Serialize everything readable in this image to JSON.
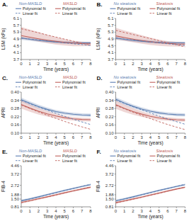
{
  "chart_data": [
    {
      "type": "line",
      "title": "A.",
      "xlabel": "Time (years)",
      "ylabel": "LSM (kPa)",
      "x": [
        0,
        1,
        2,
        3,
        4,
        5,
        6,
        7,
        8
      ],
      "xlim": [
        0,
        8
      ],
      "xticks": [
        0,
        1,
        2,
        3,
        4,
        5,
        6,
        7,
        8
      ],
      "ylim": [
        3.7,
        6.1
      ],
      "yticks": [
        3.7,
        4.1,
        4.5,
        4.9,
        5.3,
        5.7,
        6.1
      ],
      "series": [
        {
          "name": "Polynomial fit",
          "group": "Non-MASLD",
          "color": "#5b7db1",
          "line_style": "solid",
          "values": [
            4.95,
            4.88,
            4.82,
            4.77,
            4.73,
            4.7,
            4.68,
            4.67,
            4.67
          ],
          "ci_upper": [
            5.05,
            4.97,
            4.91,
            4.86,
            4.82,
            4.78,
            4.76,
            4.75,
            4.75
          ],
          "ci_lower": [
            4.85,
            4.79,
            4.73,
            4.68,
            4.64,
            4.62,
            4.6,
            4.59,
            4.59
          ]
        },
        {
          "name": "Polynomial fit",
          "group": "MASLD",
          "color": "#c0615b",
          "line_style": "solid",
          "values": [
            5.1,
            5.0,
            4.91,
            4.83,
            4.76,
            4.7,
            4.66,
            4.63,
            4.62
          ],
          "ci_upper": [
            5.6,
            5.45,
            5.3,
            5.15,
            5.01,
            4.89,
            4.8,
            4.74,
            4.71
          ],
          "ci_lower": [
            4.9,
            4.85,
            4.75,
            4.65,
            4.57,
            4.52,
            4.48,
            4.48,
            4.49
          ]
        },
        {
          "name": "Linear fit",
          "group": "Non-MASLD",
          "color": "#5b7db1",
          "line_style": "dashed",
          "values": [
            4.95,
            4.89,
            4.84,
            4.78,
            4.73,
            4.67,
            4.62,
            4.57,
            4.52
          ]
        },
        {
          "name": "Linear fit",
          "group": "MASLD",
          "color": "#c0615b",
          "line_style": "dashed",
          "values": [
            5.5,
            5.38,
            5.26,
            5.13,
            5.01,
            4.89,
            4.77,
            4.65,
            4.53
          ]
        }
      ]
    },
    {
      "type": "line",
      "title": "B.",
      "xlabel": "Time (years)",
      "ylabel": "LSM (kPa)",
      "x": [
        0,
        1,
        2,
        3,
        4,
        5,
        6,
        7,
        8
      ],
      "xlim": [
        0,
        8
      ],
      "xticks": [
        0,
        1,
        2,
        3,
        4,
        5,
        6,
        7,
        8
      ],
      "ylim": [
        3.7,
        6.1
      ],
      "yticks": [
        3.7,
        4.1,
        4.5,
        4.9,
        5.3,
        5.7,
        6.1
      ],
      "series": [
        {
          "name": "Polynomial fit",
          "group": "No steatosis",
          "color": "#5b7db1",
          "line_style": "solid",
          "values": [
            4.95,
            4.88,
            4.82,
            4.77,
            4.73,
            4.7,
            4.68,
            4.67,
            4.67
          ],
          "ci_upper": [
            5.05,
            4.97,
            4.91,
            4.86,
            4.82,
            4.78,
            4.76,
            4.75,
            4.75
          ],
          "ci_lower": [
            4.85,
            4.79,
            4.73,
            4.68,
            4.64,
            4.62,
            4.6,
            4.59,
            4.59
          ]
        },
        {
          "name": "Polynomial fit",
          "group": "Steatosis",
          "color": "#c0615b",
          "line_style": "solid",
          "values": [
            5.08,
            4.98,
            4.89,
            4.81,
            4.74,
            4.68,
            4.64,
            4.61,
            4.6
          ],
          "ci_upper": [
            5.55,
            5.4,
            5.26,
            5.12,
            4.98,
            4.86,
            4.78,
            4.73,
            4.7
          ],
          "ci_lower": [
            4.88,
            4.8,
            4.7,
            4.62,
            4.55,
            4.5,
            4.47,
            4.46,
            4.47
          ]
        },
        {
          "name": "Linear fit",
          "group": "No steatosis",
          "color": "#5b7db1",
          "line_style": "dashed",
          "values": [
            4.95,
            4.89,
            4.84,
            4.78,
            4.73,
            4.67,
            4.62,
            4.57,
            4.52
          ]
        },
        {
          "name": "Linear fit",
          "group": "Steatosis",
          "color": "#c0615b",
          "line_style": "dashed",
          "values": [
            5.4,
            5.28,
            5.16,
            5.04,
            4.92,
            4.8,
            4.68,
            4.56,
            4.44
          ]
        }
      ]
    },
    {
      "type": "line",
      "title": "C.",
      "xlabel": "Time (years)",
      "ylabel": "APRI",
      "x": [
        0,
        1,
        2,
        3,
        4,
        5,
        6,
        7,
        8
      ],
      "xlim": [
        0,
        8
      ],
      "xticks": [
        0,
        1,
        2,
        3,
        4,
        5,
        6,
        7,
        8
      ],
      "ylim": [
        0.1,
        0.4
      ],
      "yticks": [
        {
          "value": 0.1,
          "label": "0.10"
        },
        0.16,
        0.22,
        0.28,
        0.34,
        {
          "value": 0.4,
          "label": "0.40"
        }
      ],
      "series": [
        {
          "name": "Polynomial fit",
          "group": "Non-MASLD",
          "color": "#5b7db1",
          "line_style": "solid",
          "values": [
            0.345,
            0.318,
            0.294,
            0.274,
            0.258,
            0.246,
            0.238,
            0.233,
            0.231
          ],
          "ci_upper": [
            0.36,
            0.333,
            0.308,
            0.287,
            0.27,
            0.258,
            0.25,
            0.245,
            0.243
          ],
          "ci_lower": [
            0.33,
            0.303,
            0.28,
            0.261,
            0.246,
            0.234,
            0.226,
            0.221,
            0.219
          ]
        },
        {
          "name": "Polynomial fit",
          "group": "MASLD",
          "color": "#c0615b",
          "line_style": "solid",
          "values": [
            0.31,
            0.283,
            0.26,
            0.241,
            0.225,
            0.213,
            0.205,
            0.2,
            0.198
          ],
          "ci_upper": [
            0.34,
            0.31,
            0.284,
            0.261,
            0.242,
            0.228,
            0.218,
            0.213,
            0.211
          ],
          "ci_lower": [
            0.28,
            0.256,
            0.236,
            0.221,
            0.208,
            0.198,
            0.192,
            0.187,
            0.185
          ]
        },
        {
          "name": "Linear fit",
          "group": "Non-MASLD",
          "color": "#5b7db1",
          "line_style": "dashed",
          "values": [
            0.34,
            0.315,
            0.291,
            0.268,
            0.245,
            0.223,
            0.202,
            0.182,
            0.163
          ]
        },
        {
          "name": "Linear fit",
          "group": "MASLD",
          "color": "#c0615b",
          "line_style": "dashed",
          "values": [
            0.305,
            0.28,
            0.255,
            0.231,
            0.208,
            0.186,
            0.165,
            0.146,
            0.128
          ]
        }
      ]
    },
    {
      "type": "line",
      "title": "D.",
      "xlabel": "Time (years)",
      "ylabel": "APRI",
      "x": [
        0,
        1,
        2,
        3,
        4,
        5,
        6,
        7,
        8
      ],
      "xlim": [
        0,
        8
      ],
      "xticks": [
        0,
        1,
        2,
        3,
        4,
        5,
        6,
        7,
        8
      ],
      "ylim": [
        0.1,
        0.4
      ],
      "yticks": [
        {
          "value": 0.1,
          "label": "0.10"
        },
        0.16,
        0.22,
        0.28,
        0.34,
        {
          "value": 0.4,
          "label": "0.40"
        }
      ],
      "series": [
        {
          "name": "Polynomial fit",
          "group": "No steatosis",
          "color": "#5b7db1",
          "line_style": "solid",
          "values": [
            0.348,
            0.32,
            0.296,
            0.276,
            0.26,
            0.248,
            0.24,
            0.235,
            0.233
          ],
          "ci_upper": [
            0.362,
            0.335,
            0.31,
            0.289,
            0.272,
            0.26,
            0.252,
            0.247,
            0.245
          ],
          "ci_lower": [
            0.334,
            0.305,
            0.282,
            0.263,
            0.248,
            0.236,
            0.228,
            0.223,
            0.221
          ]
        },
        {
          "name": "Polynomial fit",
          "group": "Steatosis",
          "color": "#c0615b",
          "line_style": "solid",
          "values": [
            0.308,
            0.281,
            0.258,
            0.239,
            0.223,
            0.211,
            0.203,
            0.198,
            0.196
          ],
          "ci_upper": [
            0.338,
            0.308,
            0.282,
            0.259,
            0.24,
            0.226,
            0.216,
            0.211,
            0.209
          ],
          "ci_lower": [
            0.278,
            0.254,
            0.234,
            0.219,
            0.206,
            0.196,
            0.19,
            0.185,
            0.183
          ]
        },
        {
          "name": "Linear fit",
          "group": "No steatosis",
          "color": "#5b7db1",
          "line_style": "dashed",
          "values": [
            0.342,
            0.317,
            0.293,
            0.27,
            0.247,
            0.225,
            0.204,
            0.184,
            0.165
          ]
        },
        {
          "name": "Linear fit",
          "group": "Steatosis",
          "color": "#c0615b",
          "line_style": "dashed",
          "values": [
            0.303,
            0.278,
            0.253,
            0.229,
            0.206,
            0.184,
            0.163,
            0.144,
            0.126
          ]
        }
      ]
    },
    {
      "type": "line",
      "title": "E.",
      "xlabel": "Time (years)",
      "ylabel": "FIB-4",
      "x": [
        0,
        1,
        2,
        3,
        4,
        5,
        6,
        7,
        8
      ],
      "xlim": [
        0,
        8
      ],
      "xticks": [
        0,
        1,
        2,
        3,
        4,
        5,
        6,
        7,
        8
      ],
      "ylim": [
        0.81,
        4.46
      ],
      "yticks": [
        0.81,
        {
          "value": 1.5,
          "label": "1.50"
        },
        1.88,
        2.72,
        3.72,
        4.46
      ],
      "series": [
        {
          "name": "Polynomial fit",
          "group": "Non-MASLD",
          "color": "#5b7db1",
          "line_style": "solid",
          "values": [
            1.35,
            1.52,
            1.7,
            1.89,
            2.08,
            2.27,
            2.45,
            2.62,
            2.78
          ],
          "ci_upper": [
            1.45,
            1.61,
            1.79,
            1.97,
            2.16,
            2.35,
            2.53,
            2.7,
            2.86
          ],
          "ci_lower": [
            1.25,
            1.43,
            1.61,
            1.81,
            2.0,
            2.19,
            2.37,
            2.54,
            2.7
          ]
        },
        {
          "name": "Polynomial fit",
          "group": "MASLD",
          "color": "#c0615b",
          "line_style": "solid",
          "values": [
            1.2,
            1.36,
            1.53,
            1.7,
            1.88,
            2.06,
            2.23,
            2.39,
            2.55
          ],
          "ci_upper": [
            1.3,
            1.45,
            1.62,
            1.79,
            1.97,
            2.15,
            2.32,
            2.48,
            2.64
          ],
          "ci_lower": [
            1.1,
            1.27,
            1.44,
            1.61,
            1.79,
            1.97,
            2.14,
            2.3,
            2.46
          ]
        },
        {
          "name": "Linear fit",
          "group": "Non-MASLD",
          "color": "#5b7db1",
          "line_style": "dashed",
          "values": [
            1.33,
            1.5,
            1.68,
            1.87,
            2.06,
            2.25,
            2.44,
            2.63,
            2.82
          ]
        },
        {
          "name": "Linear fit",
          "group": "MASLD",
          "color": "#c0615b",
          "line_style": "dashed",
          "values": [
            1.18,
            1.34,
            1.51,
            1.68,
            1.86,
            2.04,
            2.22,
            2.4,
            2.58
          ]
        }
      ]
    },
    {
      "type": "line",
      "title": "F.",
      "xlabel": "Time (years)",
      "ylabel": "FIB-4",
      "x": [
        0,
        1,
        2,
        3,
        4,
        5,
        6,
        7,
        8
      ],
      "xlim": [
        0,
        8
      ],
      "xticks": [
        0,
        1,
        2,
        3,
        4,
        5,
        6,
        7,
        8
      ],
      "ylim": [
        0.81,
        4.46
      ],
      "yticks": [
        0.81,
        {
          "value": 1.5,
          "label": "1.50"
        },
        1.88,
        2.72,
        3.72,
        4.46
      ],
      "series": [
        {
          "name": "Polynomial fit",
          "group": "No steatosis",
          "color": "#5b7db1",
          "line_style": "solid",
          "values": [
            1.35,
            1.52,
            1.7,
            1.89,
            2.08,
            2.27,
            2.45,
            2.62,
            2.78
          ],
          "ci_upper": [
            1.45,
            1.61,
            1.79,
            1.97,
            2.16,
            2.35,
            2.53,
            2.7,
            2.86
          ],
          "ci_lower": [
            1.25,
            1.43,
            1.61,
            1.81,
            2.0,
            2.19,
            2.37,
            2.54,
            2.7
          ]
        },
        {
          "name": "Polynomial fit",
          "group": "Steatosis",
          "color": "#c0615b",
          "line_style": "solid",
          "values": [
            1.18,
            1.34,
            1.51,
            1.68,
            1.86,
            2.04,
            2.22,
            2.39,
            2.55
          ],
          "ci_upper": [
            1.28,
            1.43,
            1.6,
            1.77,
            1.95,
            2.13,
            2.3,
            2.46,
            2.62
          ],
          "ci_lower": [
            1.08,
            1.25,
            1.42,
            1.59,
            1.77,
            1.95,
            2.14,
            2.32,
            2.48
          ]
        },
        {
          "name": "Linear fit",
          "group": "No steatosis",
          "color": "#5b7db1",
          "line_style": "dashed",
          "values": [
            1.33,
            1.5,
            1.68,
            1.87,
            2.06,
            2.25,
            2.44,
            2.63,
            2.82
          ]
        },
        {
          "name": "Linear fit",
          "group": "Steatosis",
          "color": "#c0615b",
          "line_style": "dashed",
          "values": [
            1.16,
            1.32,
            1.49,
            1.66,
            1.84,
            2.02,
            2.2,
            2.38,
            2.56
          ]
        }
      ]
    }
  ]
}
